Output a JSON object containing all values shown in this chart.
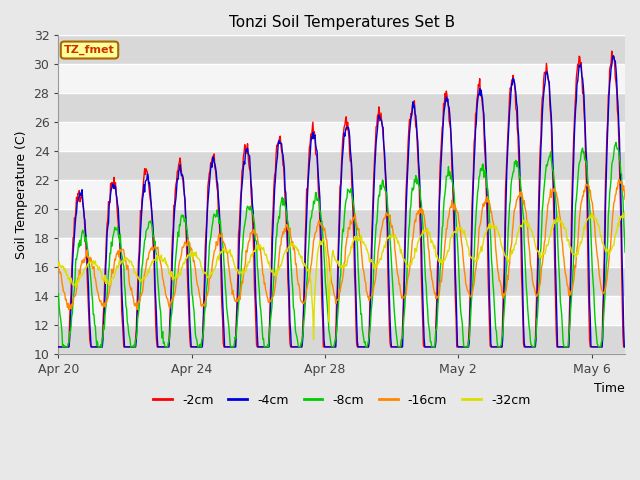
{
  "title": "Tonzi Soil Temperatures Set B",
  "xlabel": "Time",
  "ylabel": "Soil Temperature (C)",
  "ylim": [
    10,
    32
  ],
  "annotation_text": "TZ_fmet",
  "annotation_bg": "#ffff99",
  "annotation_border": "#aa6600",
  "annotation_color": "#cc3300",
  "series_colors": {
    "-2cm": "#ff0000",
    "-4cm": "#0000dd",
    "-8cm": "#00cc00",
    "-16cm": "#ff8800",
    "-32cm": "#dddd00"
  },
  "xtick_labels": [
    "Apr 20",
    "Apr 24",
    "Apr 28",
    "May 2",
    "May 6"
  ],
  "xtick_positions": [
    0,
    4,
    8,
    12,
    16
  ],
  "ytick_values": [
    10,
    12,
    14,
    16,
    18,
    20,
    22,
    24,
    26,
    28,
    30,
    32
  ],
  "figsize": [
    6.4,
    4.8
  ],
  "dpi": 100,
  "bg_color": "#e8e8e8",
  "plot_bg": "#ebebeb",
  "band_color": "#d8d8d8",
  "white_band": "#f5f5f5"
}
